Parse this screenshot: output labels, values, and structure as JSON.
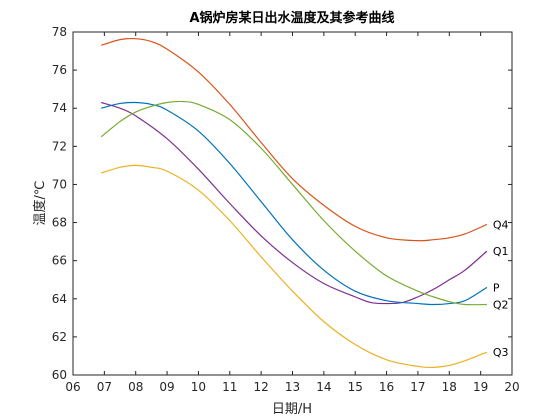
{
  "chart_data": {
    "type": "line",
    "title": "A锅炉房某日出水温度及其参考曲线",
    "xlabel": "日期/H",
    "ylabel": "温度/℃",
    "xlim": [
      6,
      20
    ],
    "ylim": [
      60,
      78
    ],
    "x_ticks": [
      "06",
      "07",
      "08",
      "09",
      "10",
      "11",
      "12",
      "13",
      "14",
      "15",
      "16",
      "17",
      "18",
      "19",
      "20"
    ],
    "y_ticks": [
      "60",
      "62",
      "64",
      "66",
      "68",
      "70",
      "72",
      "74",
      "76",
      "78"
    ],
    "grid": false,
    "legend": "none",
    "series": [
      {
        "name": "Q4",
        "color": "#D95319",
        "x": [
          6.9,
          7.5,
          8.0,
          8.5,
          9.0,
          10.0,
          11.0,
          12.0,
          13.0,
          14.0,
          15.0,
          16.0,
          17.0,
          17.5,
          18.0,
          18.5,
          19.2
        ],
        "y": [
          77.3,
          77.6,
          77.65,
          77.5,
          77.1,
          75.9,
          74.2,
          72.2,
          70.3,
          68.9,
          67.8,
          67.2,
          67.05,
          67.1,
          67.2,
          67.4,
          67.9
        ]
      },
      {
        "name": "Q1",
        "color": "#7E2F8E",
        "x": [
          6.9,
          7.5,
          8.0,
          9.0,
          10.0,
          11.0,
          12.0,
          13.0,
          14.0,
          15.0,
          15.5,
          16.0,
          16.5,
          17.0,
          17.5,
          18.0,
          18.5,
          19.2
        ],
        "y": [
          74.3,
          74.0,
          73.6,
          72.4,
          70.8,
          69.0,
          67.3,
          65.9,
          64.8,
          64.1,
          63.8,
          63.75,
          63.8,
          64.1,
          64.5,
          65.0,
          65.5,
          66.5
        ]
      },
      {
        "name": "P",
        "color": "#0072BD",
        "x": [
          6.9,
          7.5,
          8.0,
          8.5,
          9.0,
          10.0,
          11.0,
          12.0,
          13.0,
          14.0,
          15.0,
          16.0,
          17.0,
          17.5,
          18.0,
          18.5,
          19.2
        ],
        "y": [
          74.0,
          74.25,
          74.3,
          74.2,
          73.9,
          72.8,
          71.1,
          69.1,
          67.1,
          65.5,
          64.4,
          63.9,
          63.75,
          63.7,
          63.75,
          63.9,
          64.6
        ]
      },
      {
        "name": "Q2",
        "color": "#77AC30",
        "x": [
          6.9,
          7.5,
          8.0,
          8.5,
          9.0,
          9.5,
          10.0,
          11.0,
          12.0,
          13.0,
          14.0,
          15.0,
          16.0,
          17.0,
          17.5,
          18.0,
          18.5,
          19.2
        ],
        "y": [
          72.5,
          73.3,
          73.8,
          74.1,
          74.3,
          74.35,
          74.2,
          73.4,
          71.9,
          70.0,
          68.1,
          66.5,
          65.2,
          64.4,
          64.1,
          63.85,
          63.7,
          63.7
        ]
      },
      {
        "name": "Q3",
        "color": "#EDB120",
        "x": [
          6.9,
          7.5,
          8.0,
          8.5,
          9.0,
          10.0,
          11.0,
          12.0,
          13.0,
          14.0,
          15.0,
          16.0,
          17.0,
          17.5,
          18.0,
          18.5,
          19.2
        ],
        "y": [
          70.6,
          70.9,
          71.0,
          70.9,
          70.7,
          69.7,
          68.1,
          66.2,
          64.4,
          62.8,
          61.6,
          60.8,
          60.45,
          60.4,
          60.5,
          60.75,
          61.2
        ]
      }
    ]
  }
}
